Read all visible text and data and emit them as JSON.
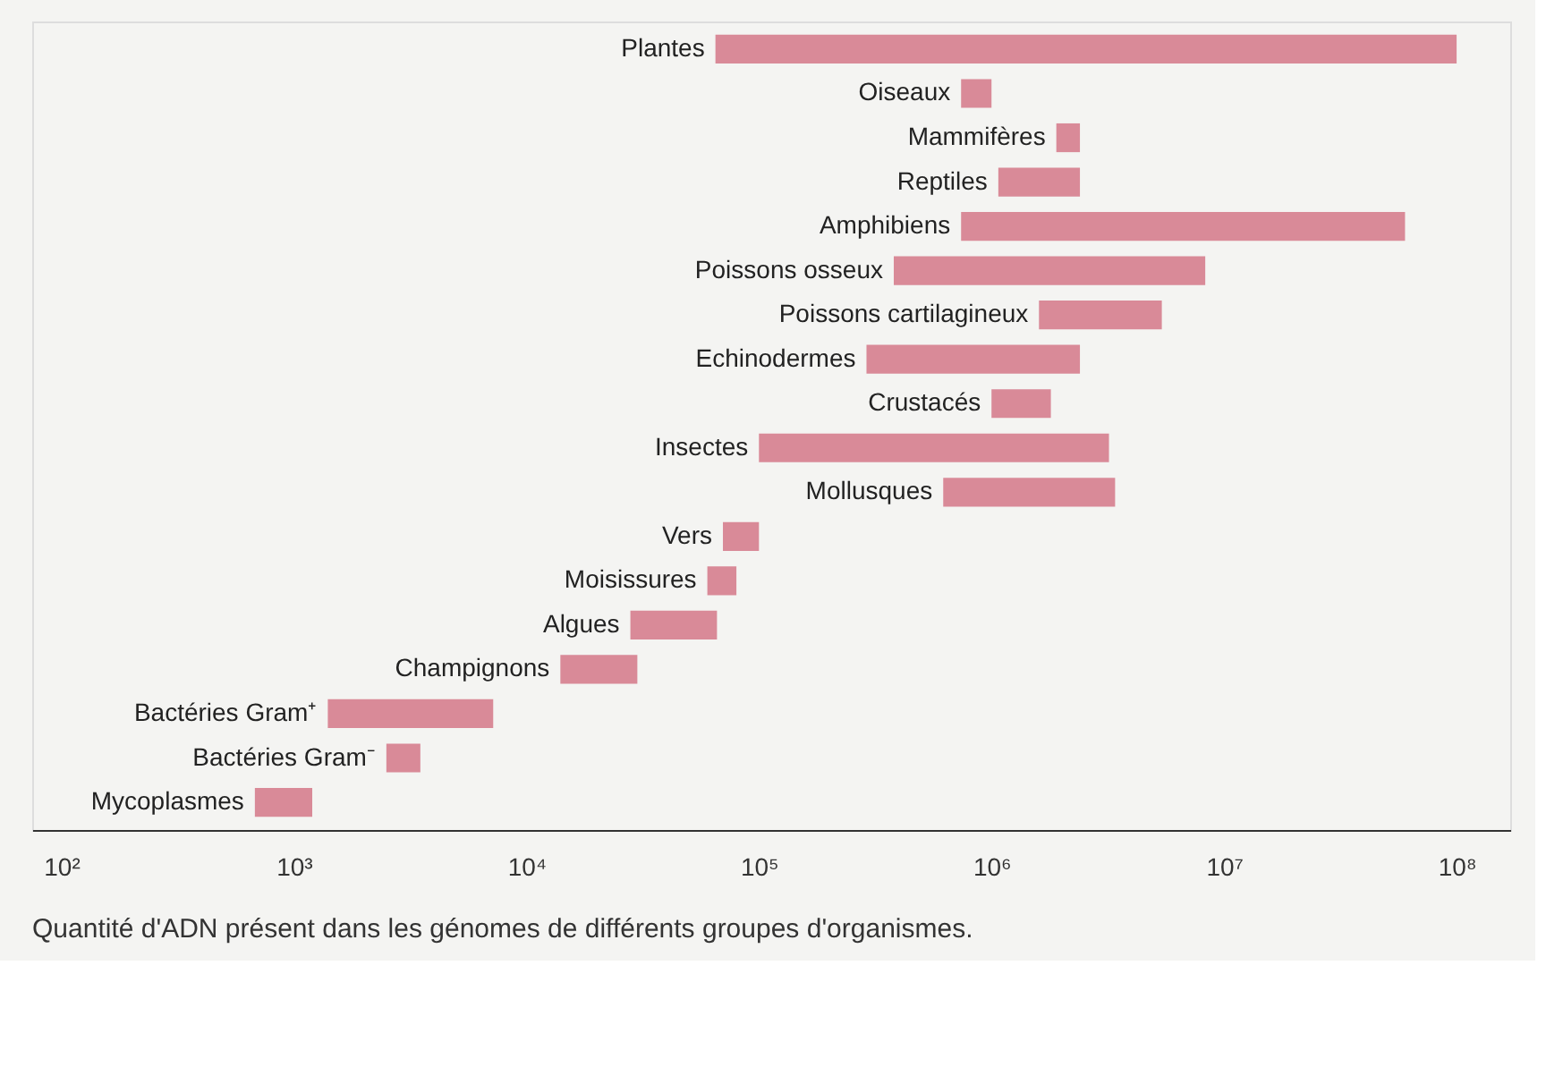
{
  "chart_data": {
    "type": "bar",
    "orientation": "horizontal",
    "log": "x",
    "categories": [
      "Plantes",
      "Oiseaux",
      "Mammifères",
      "Reptiles",
      "Amphibiens",
      "Poissons osseux",
      "Poissons cartilagineux",
      "Echinodermes",
      "Crustacés",
      "Insectes",
      "Mollusques",
      "Vers",
      "Moisissures",
      "Algues",
      "Champignons",
      "Bactéries Gram⁺",
      "Bactéries Gram⁻",
      "Mycoplasmes"
    ],
    "base": [
      65000,
      740000,
      1900000,
      1070000,
      740000,
      380000,
      1600000,
      290000,
      1000000,
      100000,
      620000,
      70000,
      60000,
      28000,
      14000,
      1400,
      2500,
      680
    ],
    "values": [
      99935000,
      260000,
      500000,
      1330000,
      59260000,
      7920000,
      3800000,
      2110000,
      800000,
      3100000,
      2780000,
      30000,
      20000,
      38000,
      16000,
      5800,
      1000,
      520
    ],
    "color": "#d98a98",
    "xlim": [
      75,
      170000000
    ],
    "xticks": [
      {
        "value": 100,
        "label": "10²"
      },
      {
        "value": 1000,
        "label": "10³"
      },
      {
        "value": 10000,
        "label": "10⁴"
      },
      {
        "value": 100000,
        "label": "10⁵"
      },
      {
        "value": 1000000,
        "label": "10⁶"
      },
      {
        "value": 10000000,
        "label": "10⁷"
      },
      {
        "value": 100000000,
        "label": "10⁸"
      }
    ],
    "tick_labels": "x",
    "grid": false,
    "annotations": [
      "Quantité d'ADN présent dans les génomes de différents groupes d'organismes."
    ]
  }
}
